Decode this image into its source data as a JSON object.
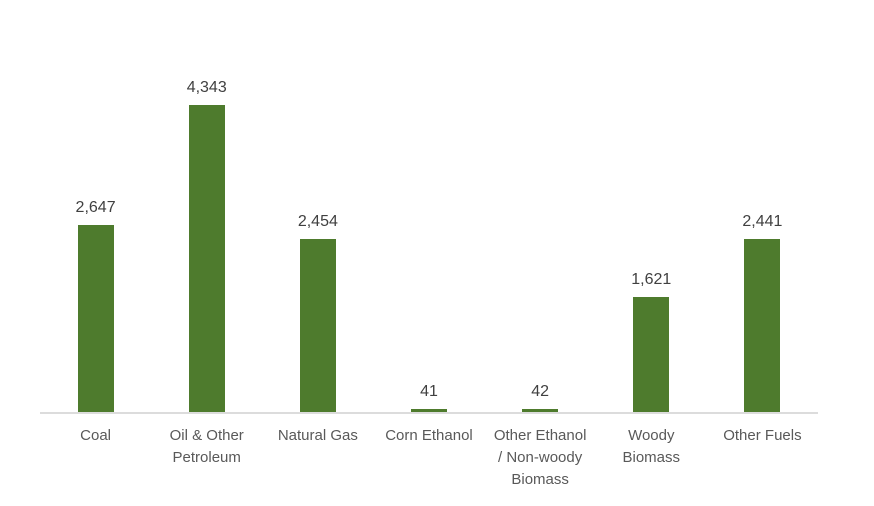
{
  "chart_data": {
    "type": "bar",
    "categories": [
      "Coal",
      "Oil & Other Petroleum",
      "Natural Gas",
      "Corn Ethanol",
      "Other Ethanol / Non-woody Biomass",
      "Woody Biomass",
      "Other Fuels"
    ],
    "values": [
      2647,
      4343,
      2454,
      41,
      42,
      1621,
      2441
    ],
    "value_labels": [
      "2,647",
      "4,343",
      "2,454",
      "41",
      "42",
      "1,621",
      "2,441"
    ],
    "category_label_lines": [
      [
        "Coal"
      ],
      [
        "Oil & Other",
        "Petroleum"
      ],
      [
        "Natural Gas"
      ],
      [
        "Corn Ethanol"
      ],
      [
        "Other Ethanol",
        "/ Non-woody",
        "Biomass"
      ],
      [
        "Woody",
        "Biomass"
      ],
      [
        "Other Fuels"
      ]
    ],
    "title": "",
    "xlabel": "",
    "ylabel": "",
    "ylim": [
      0,
      4343
    ],
    "grid": false,
    "legend": false,
    "y_axis_shown": false,
    "bar_color": "#4e7b2d",
    "value_label_color": "#404040",
    "category_label_color": "#595959",
    "axis_line_color": "#dcdcdc",
    "background_color": "#ffffff"
  }
}
